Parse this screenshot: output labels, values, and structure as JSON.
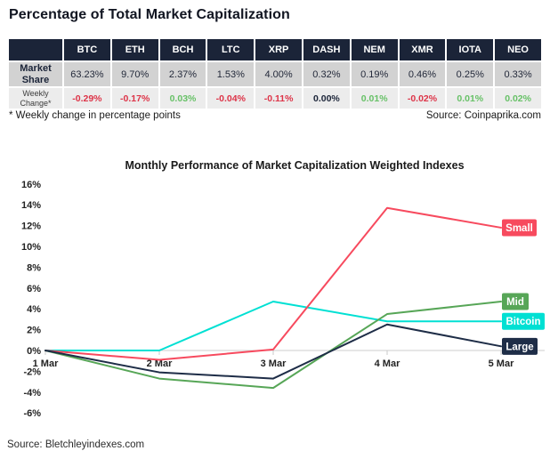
{
  "page_title": "Percentage of Total Market Capitalization",
  "footnote": "* Weekly change in percentage points",
  "table_source": "Source: Coinpaprika.com",
  "chart_source": "Source: Bletchleyindexes.com",
  "colors": {
    "header_navy": "#1b2438",
    "market_row_bg": "#d2d2d2",
    "weekly_row_bg": "#ececec",
    "negative_text": "#dd3448",
    "positive_text": "#67c167",
    "axis_line": "#d8d8d8"
  },
  "chart_data": [
    {
      "type": "table",
      "columns": [
        "",
        "BTC",
        "ETH",
        "BCH",
        "LTC",
        "XRP",
        "DASH",
        "NEM",
        "XMR",
        "IOTA",
        "NEO"
      ],
      "rows": [
        {
          "id": "market-share",
          "label": "Market Share",
          "values": [
            "63.23%",
            "9.70%",
            "2.37%",
            "1.53%",
            "4.00%",
            "0.32%",
            "0.19%",
            "0.46%",
            "0.25%",
            "0.33%"
          ]
        },
        {
          "id": "weekly-change",
          "label": "Weekly Change*",
          "values": [
            "-0.29%",
            "-0.17%",
            "0.03%",
            "-0.04%",
            "-0.11%",
            "0.00%",
            "0.01%",
            "-0.02%",
            "0.01%",
            "0.02%"
          ]
        }
      ]
    },
    {
      "type": "line",
      "title": "Monthly Performance of Market Capitalization Weighted Indexes",
      "x": [
        "1 Mar",
        "2 Mar",
        "3 Mar",
        "4 Mar",
        "5 Mar"
      ],
      "series": [
        {
          "name": "Bitcoin",
          "color": "#00e0d3",
          "values": [
            0,
            0,
            4.7,
            2.8,
            2.8
          ],
          "badge_width": 48
        },
        {
          "name": "Small",
          "color": "#f74a5e",
          "values": [
            0,
            -0.9,
            0.1,
            13.7,
            11.8
          ],
          "badge_width": 39
        },
        {
          "name": "Mid",
          "color": "#57a657",
          "values": [
            0,
            -2.7,
            -3.6,
            3.5,
            4.7
          ],
          "badge_width": 30
        },
        {
          "name": "Large",
          "color": "#1e2d47",
          "values": [
            0,
            -2.1,
            -2.7,
            2.5,
            0.4
          ],
          "badge_width": 40
        }
      ],
      "ylim": [
        -6,
        16
      ],
      "y_tick_step": 2,
      "y_tick_suffix": "%",
      "grid": false,
      "legend_position": "right-edge-badges"
    }
  ]
}
